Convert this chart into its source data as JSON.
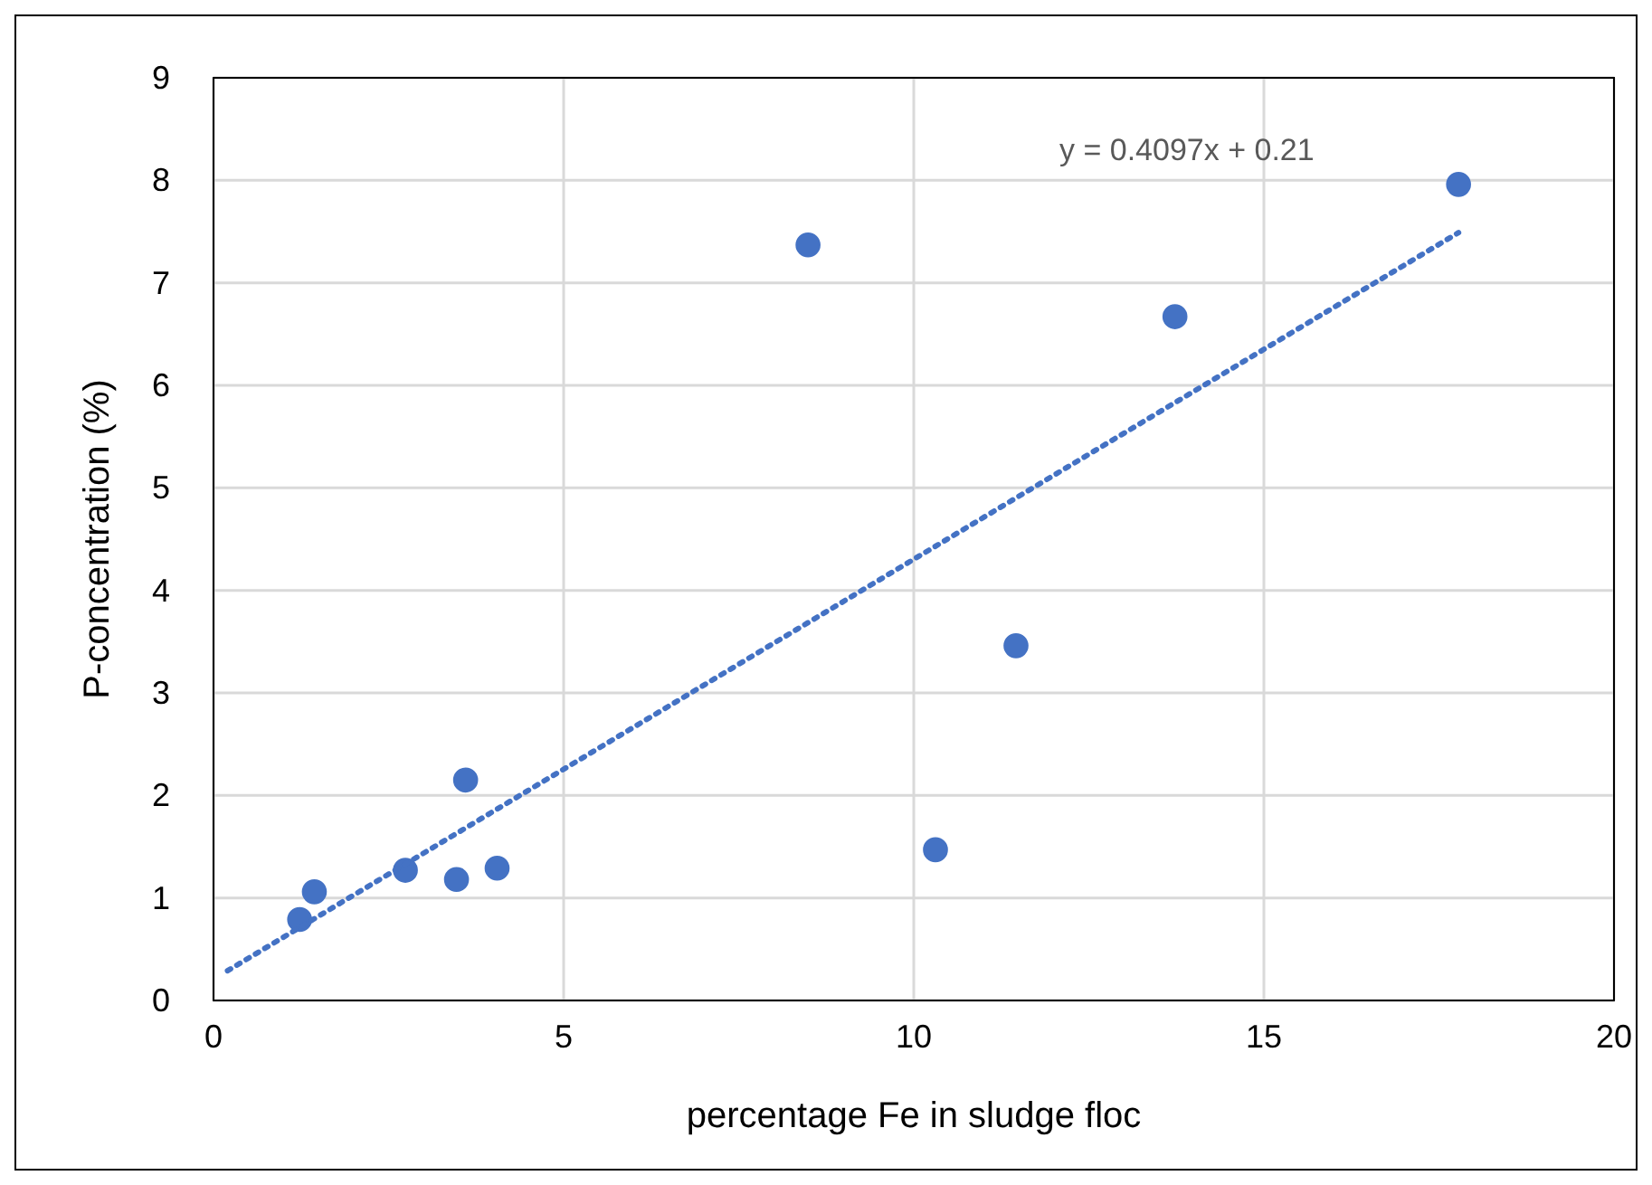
{
  "chart_data": {
    "type": "scatter",
    "xlabel": "percentage Fe in sludge floc",
    "ylabel": "P-concentration (%)",
    "xlim": [
      0,
      20
    ],
    "xticks": [
      0,
      5,
      10,
      15,
      20
    ],
    "ylim": [
      0,
      9
    ],
    "yticks": [
      0,
      1,
      2,
      3,
      4,
      5,
      6,
      7,
      8,
      9
    ],
    "grid": true,
    "marker": "circle",
    "annotations": [
      "y = 0.4097x + 0.21"
    ],
    "series": [
      {
        "color": "#4472c4",
        "x": [
          1.23,
          1.44,
          2.74,
          3.47,
          3.6,
          4.05,
          8.49,
          10.31,
          11.46,
          13.73,
          17.78
        ],
        "values": [
          0.79,
          1.06,
          1.27,
          1.18,
          2.15,
          1.29,
          7.37,
          1.47,
          3.46,
          6.67,
          7.96
        ]
      },
      {
        "type": "line",
        "color": "#4472c4",
        "line_style": "dotted",
        "marker": "none",
        "x": [
          0.2,
          17.78
        ],
        "values": [
          0.29,
          7.49
        ]
      }
    ]
  }
}
